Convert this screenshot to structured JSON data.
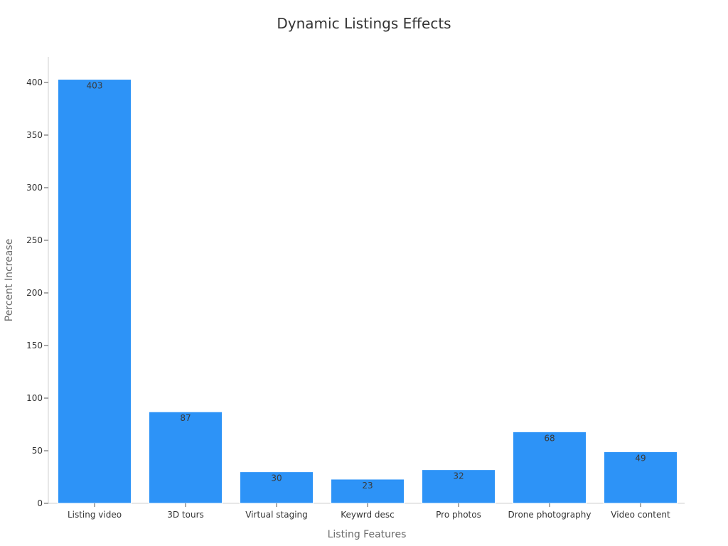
{
  "chart_data": {
    "type": "bar",
    "title": "Dynamic Listings Effects",
    "xlabel": "Listing Features",
    "ylabel": "Percent Increase",
    "categories": [
      "Listing video",
      "3D tours",
      "Virtual staging",
      "Keywrd desc",
      "Pro photos",
      "Drone photography",
      "Video content"
    ],
    "values": [
      403,
      87,
      30,
      23,
      32,
      68,
      49
    ],
    "ylim": [
      0,
      425
    ],
    "yticks": [
      0,
      50,
      100,
      150,
      200,
      250,
      300,
      350,
      400
    ],
    "bar_color": "#2d93f7",
    "grid": false,
    "legend": "none"
  }
}
